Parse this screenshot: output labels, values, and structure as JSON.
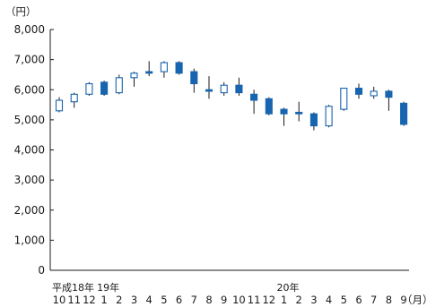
{
  "chart_data": {
    "type": "candlestick",
    "y_unit_label": "（円）",
    "x_unit_label": "（月）",
    "ylim": [
      0,
      8000
    ],
    "yticks": [
      "0",
      "1,000",
      "2,000",
      "3,000",
      "4,000",
      "5,000",
      "6,000",
      "7,000",
      "8,000"
    ],
    "grid": false,
    "era_labels": [
      {
        "text": "平成18年",
        "index": 0
      },
      {
        "text": "19年",
        "index": 3
      },
      {
        "text": "20年",
        "index": 15
      }
    ],
    "colors": {
      "up_fill": "#ffffff",
      "down_fill": "#1764b0",
      "stroke": "#1764b0",
      "wick": "#1a1a1a",
      "axis": "#1a1a1a"
    },
    "candles": [
      {
        "month": "10",
        "open": 5300,
        "close": 5650,
        "high": 5750,
        "low": 5250
      },
      {
        "month": "11",
        "open": 5600,
        "close": 5850,
        "high": 5900,
        "low": 5400
      },
      {
        "month": "12",
        "open": 5850,
        "close": 6200,
        "high": 6250,
        "low": 5800
      },
      {
        "month": "1",
        "open": 6250,
        "close": 5850,
        "high": 6300,
        "low": 5800
      },
      {
        "month": "2",
        "open": 5900,
        "close": 6400,
        "high": 6500,
        "low": 5850
      },
      {
        "month": "3",
        "open": 6400,
        "close": 6550,
        "high": 6600,
        "low": 6100
      },
      {
        "month": "4",
        "open": 6600,
        "close": 6550,
        "high": 6950,
        "low": 6450
      },
      {
        "month": "5",
        "open": 6600,
        "close": 6900,
        "high": 6950,
        "low": 6400
      },
      {
        "month": "6",
        "open": 6900,
        "close": 6550,
        "high": 6950,
        "low": 6500
      },
      {
        "month": "7",
        "open": 6600,
        "close": 6200,
        "high": 6700,
        "low": 5900
      },
      {
        "month": "8",
        "open": 6000,
        "close": 5950,
        "high": 6450,
        "low": 5700
      },
      {
        "month": "9",
        "open": 5900,
        "close": 6150,
        "high": 6250,
        "low": 5800
      },
      {
        "month": "10",
        "open": 6150,
        "close": 5900,
        "high": 6400,
        "low": 5800
      },
      {
        "month": "11",
        "open": 5850,
        "close": 5650,
        "high": 6000,
        "low": 5200
      },
      {
        "month": "12",
        "open": 5700,
        "close": 5200,
        "high": 5750,
        "low": 5150
      },
      {
        "month": "1",
        "open": 5350,
        "close": 5200,
        "high": 5400,
        "low": 4800
      },
      {
        "month": "2",
        "open": 5250,
        "close": 5200,
        "high": 5600,
        "low": 4950
      },
      {
        "month": "3",
        "open": 5200,
        "close": 4800,
        "high": 5250,
        "low": 4650
      },
      {
        "month": "4",
        "open": 4800,
        "close": 5450,
        "high": 5500,
        "low": 4750
      },
      {
        "month": "5",
        "open": 5350,
        "close": 6050,
        "high": 6050,
        "low": 5300
      },
      {
        "month": "6",
        "open": 6050,
        "close": 5850,
        "high": 6200,
        "low": 5700
      },
      {
        "month": "7",
        "open": 5800,
        "close": 5950,
        "high": 6100,
        "low": 5700
      },
      {
        "month": "8",
        "open": 5950,
        "close": 5750,
        "high": 6000,
        "low": 5300
      },
      {
        "month": "9",
        "open": 5550,
        "close": 4850,
        "high": 5600,
        "low": 4800
      }
    ]
  }
}
